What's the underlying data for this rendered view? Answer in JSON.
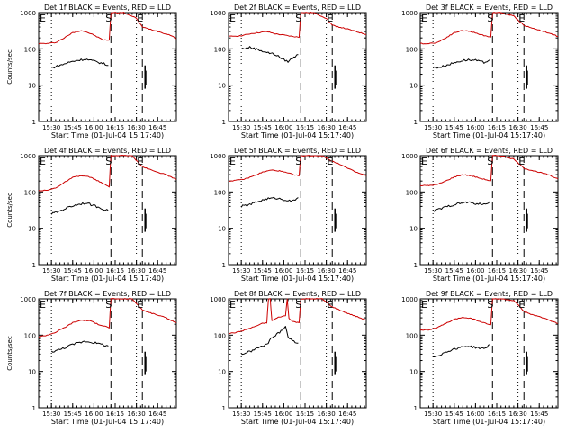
{
  "page": {
    "background": "#ffffff"
  },
  "chart_data": [
    {
      "type": "line",
      "title": "Det 1f BLACK = Events, RED = LLD",
      "xlabel": "Start Time (01-Jul-04 15:17:40)",
      "ylabel": "Counts/sec",
      "xlim": [
        15.35,
        16.97
      ],
      "ylim": [
        1,
        1000
      ],
      "log_y": true,
      "x_tick_labels": [
        "15:30",
        "15:45",
        "16:00",
        "16:15",
        "16:30",
        "16:45"
      ],
      "y_tick_labels": [
        "1",
        "10",
        "100",
        "1000"
      ],
      "markers": {
        "dotted": [
          15.5,
          16.5
        ],
        "dashed": [
          16.2,
          16.57
        ],
        "text": [
          {
            "x": 15.35,
            "label": "E"
          },
          {
            "x": 16.2,
            "label": "S"
          },
          {
            "x": 16.57,
            "label": "E"
          }
        ]
      },
      "series": [
        {
          "legend": "RED = LLD",
          "color": "#cc0000",
          "x": [
            15.35,
            15.45,
            15.55,
            15.65,
            15.75,
            15.85,
            15.9,
            16.0,
            16.1,
            16.18,
            16.2,
            16.22,
            16.27,
            16.35,
            16.5,
            16.57,
            16.6,
            16.7,
            16.8,
            16.9,
            16.97
          ],
          "y": [
            140,
            140,
            150,
            200,
            280,
            320,
            300,
            240,
            180,
            170,
            1000,
            1000,
            1000,
            1000,
            700,
            400,
            380,
            330,
            280,
            240,
            190
          ]
        },
        {
          "legend": "BLACK = Events",
          "color": "#000000",
          "x": [
            15.5,
            15.6,
            15.7,
            15.8,
            15.9,
            16.0,
            16.1,
            16.17
          ],
          "y": [
            30,
            35,
            42,
            48,
            52,
            46,
            40,
            35
          ]
        }
      ]
    },
    {
      "type": "line",
      "title": "Det 2f BLACK = Events, RED = LLD",
      "xlabel": "Start Time (01-Jul-04 15:17:40)",
      "ylabel": "",
      "xlim": [
        15.35,
        16.97
      ],
      "ylim": [
        1,
        1000
      ],
      "log_y": true,
      "x_tick_labels": [
        "15:30",
        "15:45",
        "16:00",
        "16:15",
        "16:30",
        "16:45"
      ],
      "y_tick_labels": [
        "1",
        "10",
        "100",
        "1000"
      ],
      "markers": {
        "dotted": [
          15.5,
          16.5
        ],
        "dashed": [
          16.2,
          16.57
        ],
        "text": [
          {
            "x": 15.35,
            "label": "E"
          },
          {
            "x": 16.2,
            "label": "S"
          },
          {
            "x": 16.57,
            "label": "E"
          }
        ]
      },
      "series": [
        {
          "legend": "RED = LLD",
          "color": "#cc0000",
          "x": [
            15.35,
            15.5,
            15.6,
            15.7,
            15.8,
            15.9,
            16.0,
            16.1,
            16.18,
            16.2,
            16.25,
            16.35,
            16.5,
            16.57,
            16.65,
            16.75,
            16.85,
            16.97
          ],
          "y": [
            220,
            230,
            260,
            280,
            300,
            260,
            240,
            220,
            210,
            1000,
            1000,
            1000,
            700,
            450,
            400,
            350,
            300,
            250
          ]
        },
        {
          "legend": "BLACK = Events",
          "color": "#000000",
          "x": [
            15.5,
            15.6,
            15.7,
            15.8,
            15.9,
            16.0,
            16.05,
            16.1,
            16.17
          ],
          "y": [
            100,
            110,
            95,
            80,
            70,
            50,
            45,
            55,
            70
          ]
        }
      ]
    },
    {
      "type": "line",
      "title": "Det 3f BLACK = Events, RED = LLD",
      "xlabel": "Start Time (01-Jul-04 15:17:40)",
      "ylabel": "",
      "xlim": [
        15.35,
        16.97
      ],
      "ylim": [
        1,
        1000
      ],
      "log_y": true,
      "x_tick_labels": [
        "15:30",
        "15:45",
        "16:00",
        "16:15",
        "16:30",
        "16:45"
      ],
      "y_tick_labels": [
        "1",
        "10",
        "100",
        "1000"
      ],
      "markers": {
        "dotted": [
          15.5,
          16.5
        ],
        "dashed": [
          16.2,
          16.57
        ],
        "text": [
          {
            "x": 15.35,
            "label": "E"
          },
          {
            "x": 16.2,
            "label": "S"
          },
          {
            "x": 16.57,
            "label": "E"
          }
        ]
      },
      "series": [
        {
          "legend": "RED = LLD",
          "color": "#cc0000",
          "x": [
            15.35,
            15.45,
            15.55,
            15.65,
            15.75,
            15.85,
            15.95,
            16.05,
            16.15,
            16.18,
            16.2,
            16.3,
            16.45,
            16.57,
            16.65,
            16.75,
            16.85,
            16.97
          ],
          "y": [
            140,
            140,
            150,
            200,
            280,
            320,
            300,
            250,
            220,
            210,
            1000,
            1000,
            800,
            450,
            380,
            330,
            280,
            220
          ]
        },
        {
          "legend": "BLACK = Events",
          "color": "#000000",
          "x": [
            15.5,
            15.6,
            15.7,
            15.8,
            15.9,
            16.0,
            16.1,
            16.17
          ],
          "y": [
            30,
            32,
            38,
            45,
            50,
            48,
            42,
            50
          ]
        }
      ]
    },
    {
      "type": "line",
      "title": "Det 4f BLACK = Events, RED = LLD",
      "xlabel": "Start Time (01-Jul-04 15:17:40)",
      "ylabel": "Counts/sec",
      "xlim": [
        15.35,
        16.97
      ],
      "ylim": [
        1,
        1000
      ],
      "log_y": true,
      "x_tick_labels": [
        "15:30",
        "15:45",
        "16:00",
        "16:15",
        "16:30",
        "16:45"
      ],
      "y_tick_labels": [
        "1",
        "10",
        "100",
        "1000"
      ],
      "markers": {
        "dotted": [
          15.5,
          16.5
        ],
        "dashed": [
          16.2,
          16.57
        ],
        "text": [
          {
            "x": 15.35,
            "label": "E"
          },
          {
            "x": 16.2,
            "label": "S"
          },
          {
            "x": 16.57,
            "label": "E"
          }
        ]
      },
      "series": [
        {
          "legend": "RED = LLD",
          "color": "#cc0000",
          "x": [
            15.35,
            15.45,
            15.55,
            15.65,
            15.75,
            15.85,
            15.95,
            16.05,
            16.15,
            16.18,
            16.2,
            16.3,
            16.45,
            16.57,
            16.65,
            16.75,
            16.85,
            16.97
          ],
          "y": [
            110,
            110,
            130,
            180,
            250,
            280,
            260,
            200,
            150,
            140,
            1000,
            1000,
            1000,
            500,
            420,
            350,
            300,
            220
          ]
        },
        {
          "legend": "BLACK = Events",
          "color": "#000000",
          "x": [
            15.5,
            15.6,
            15.7,
            15.8,
            15.9,
            16.0,
            16.1,
            16.17
          ],
          "y": [
            25,
            30,
            38,
            45,
            50,
            42,
            35,
            30
          ]
        }
      ]
    },
    {
      "type": "line",
      "title": "Det 5f BLACK = Events, RED = LLD",
      "xlabel": "Start Time (01-Jul-04 15:17:40)",
      "ylabel": "",
      "xlim": [
        15.35,
        16.97
      ],
      "ylim": [
        1,
        1000
      ],
      "log_y": true,
      "x_tick_labels": [
        "15:30",
        "15:45",
        "16:00",
        "16:15",
        "16:30",
        "16:45"
      ],
      "y_tick_labels": [
        "1",
        "10",
        "100",
        "1000"
      ],
      "markers": {
        "dotted": [
          15.5,
          16.5
        ],
        "dashed": [
          16.2,
          16.57
        ],
        "text": [
          {
            "x": 15.35,
            "label": "E"
          },
          {
            "x": 16.2,
            "label": "S"
          },
          {
            "x": 16.57,
            "label": "E"
          }
        ]
      },
      "series": [
        {
          "legend": "RED = LLD",
          "color": "#cc0000",
          "x": [
            15.35,
            15.45,
            15.55,
            15.65,
            15.75,
            15.85,
            15.95,
            16.05,
            16.15,
            16.18,
            16.2,
            16.3,
            16.45,
            16.57,
            16.65,
            16.75,
            16.85,
            16.97
          ],
          "y": [
            200,
            210,
            230,
            280,
            350,
            400,
            380,
            330,
            290,
            280,
            1000,
            1000,
            1000,
            700,
            600,
            450,
            350,
            280
          ]
        },
        {
          "legend": "BLACK = Events",
          "color": "#000000",
          "x": [
            15.5,
            15.6,
            15.7,
            15.8,
            15.9,
            16.0,
            16.1,
            16.17
          ],
          "y": [
            40,
            45,
            55,
            65,
            68,
            62,
            55,
            70
          ]
        }
      ]
    },
    {
      "type": "line",
      "title": "Det 6f BLACK = Events, RED = LLD",
      "xlabel": "Start Time (01-Jul-04 15:17:40)",
      "ylabel": "",
      "xlim": [
        15.35,
        16.97
      ],
      "ylim": [
        1,
        1000
      ],
      "log_y": true,
      "x_tick_labels": [
        "15:30",
        "15:45",
        "16:00",
        "16:15",
        "16:30",
        "16:45"
      ],
      "y_tick_labels": [
        "1",
        "10",
        "100",
        "1000"
      ],
      "markers": {
        "dotted": [
          15.5,
          16.5
        ],
        "dashed": [
          16.2,
          16.57
        ],
        "text": [
          {
            "x": 15.35,
            "label": "E"
          },
          {
            "x": 16.2,
            "label": "S"
          },
          {
            "x": 16.57,
            "label": "E"
          }
        ]
      },
      "series": [
        {
          "legend": "RED = LLD",
          "color": "#cc0000",
          "x": [
            15.35,
            15.45,
            15.55,
            15.65,
            15.75,
            15.85,
            15.95,
            16.05,
            16.15,
            16.18,
            16.2,
            16.3,
            16.45,
            16.57,
            16.65,
            16.75,
            16.85,
            16.97
          ],
          "y": [
            150,
            150,
            160,
            200,
            260,
            300,
            280,
            240,
            210,
            200,
            1000,
            1000,
            800,
            450,
            400,
            350,
            300,
            230
          ]
        },
        {
          "legend": "BLACK = Events",
          "color": "#000000",
          "x": [
            15.5,
            15.6,
            15.7,
            15.8,
            15.9,
            16.0,
            16.1,
            16.17
          ],
          "y": [
            30,
            35,
            42,
            48,
            52,
            48,
            45,
            55
          ]
        }
      ]
    },
    {
      "type": "line",
      "title": "Det 7f BLACK = Events, RED = LLD",
      "xlabel": "Start Time (01-Jul-04 15:17:40)",
      "ylabel": "Counts/sec",
      "xlim": [
        15.35,
        16.97
      ],
      "ylim": [
        1,
        1000
      ],
      "log_y": true,
      "x_tick_labels": [
        "15:30",
        "15:45",
        "16:00",
        "16:15",
        "16:30",
        "16:45"
      ],
      "y_tick_labels": [
        "1",
        "10",
        "100",
        "1000"
      ],
      "markers": {
        "dotted": [
          15.5,
          16.5
        ],
        "dashed": [
          16.2,
          16.57
        ],
        "text": [
          {
            "x": 15.35,
            "label": "E"
          },
          {
            "x": 16.2,
            "label": "S"
          },
          {
            "x": 16.57,
            "label": "E"
          }
        ]
      },
      "series": [
        {
          "legend": "RED = LLD",
          "color": "#cc0000",
          "x": [
            15.35,
            15.45,
            15.55,
            15.65,
            15.75,
            15.85,
            15.95,
            16.05,
            16.15,
            16.18,
            16.2,
            16.3,
            16.45,
            16.57,
            16.65,
            16.75,
            16.85,
            16.97
          ],
          "y": [
            90,
            100,
            120,
            160,
            220,
            260,
            250,
            200,
            170,
            160,
            1000,
            1000,
            1000,
            500,
            420,
            360,
            300,
            220
          ]
        },
        {
          "legend": "BLACK = Events",
          "color": "#000000",
          "x": [
            15.5,
            15.6,
            15.7,
            15.8,
            15.9,
            16.0,
            16.1,
            16.17
          ],
          "y": [
            35,
            40,
            50,
            60,
            68,
            62,
            55,
            50
          ]
        }
      ]
    },
    {
      "type": "line",
      "title": "Det 8f BLACK = Events, RED = LLD",
      "xlabel": "Start Time (01-Jul-04 15:17:40)",
      "ylabel": "",
      "xlim": [
        15.35,
        16.97
      ],
      "ylim": [
        1,
        1000
      ],
      "log_y": true,
      "x_tick_labels": [
        "15:30",
        "15:45",
        "16:00",
        "16:15",
        "16:30",
        "16:45"
      ],
      "y_tick_labels": [
        "1",
        "10",
        "100",
        "1000"
      ],
      "markers": {
        "dotted": [
          15.5,
          16.5
        ],
        "dashed": [
          16.2,
          16.57
        ],
        "text": [
          {
            "x": 15.35,
            "label": "E"
          },
          {
            "x": 16.2,
            "label": "S"
          },
          {
            "x": 16.57,
            "label": "E"
          }
        ]
      },
      "series": [
        {
          "legend": "RED = LLD",
          "color": "#cc0000",
          "x": [
            15.35,
            15.45,
            15.55,
            15.65,
            15.75,
            15.8,
            15.82,
            15.84,
            15.86,
            15.95,
            16.02,
            16.04,
            16.06,
            16.1,
            16.18,
            16.2,
            16.3,
            16.45,
            16.57,
            16.65,
            16.75,
            16.85,
            16.97
          ],
          "y": [
            110,
            120,
            140,
            170,
            210,
            220,
            1000,
            1000,
            250,
            320,
            340,
            1000,
            300,
            240,
            220,
            1000,
            1000,
            1000,
            600,
            500,
            400,
            330,
            260
          ]
        },
        {
          "legend": "BLACK = Events",
          "color": "#000000",
          "x": [
            15.5,
            15.6,
            15.7,
            15.8,
            15.85,
            15.95,
            16.02,
            16.05,
            16.1,
            16.17
          ],
          "y": [
            30,
            35,
            45,
            55,
            80,
            120,
            180,
            90,
            70,
            60
          ]
        }
      ]
    },
    {
      "type": "line",
      "title": "Det 9f BLACK = Events, RED = LLD",
      "xlabel": "Start Time (01-Jul-04 15:17:40)",
      "ylabel": "",
      "xlim": [
        15.35,
        16.97
      ],
      "ylim": [
        1,
        1000
      ],
      "log_y": true,
      "x_tick_labels": [
        "15:30",
        "15:45",
        "16:00",
        "16:15",
        "16:30",
        "16:45"
      ],
      "y_tick_labels": [
        "1",
        "10",
        "100",
        "1000"
      ],
      "markers": {
        "dotted": [
          15.5,
          16.5
        ],
        "dashed": [
          16.2,
          16.57
        ],
        "text": [
          {
            "x": 15.35,
            "label": "E"
          },
          {
            "x": 16.2,
            "label": "S"
          },
          {
            "x": 16.57,
            "label": "E"
          }
        ]
      },
      "series": [
        {
          "legend": "RED = LLD",
          "color": "#cc0000",
          "x": [
            15.35,
            15.45,
            15.55,
            15.65,
            15.75,
            15.85,
            15.95,
            16.05,
            16.15,
            16.18,
            16.2,
            16.3,
            16.45,
            16.57,
            16.65,
            16.75,
            16.85,
            16.97
          ],
          "y": [
            140,
            140,
            160,
            210,
            270,
            310,
            290,
            240,
            200,
            190,
            1000,
            1000,
            900,
            450,
            380,
            320,
            270,
            210
          ]
        },
        {
          "legend": "BLACK = Events",
          "color": "#000000",
          "x": [
            15.5,
            15.6,
            15.7,
            15.8,
            15.9,
            16.0,
            16.1,
            16.17
          ],
          "y": [
            25,
            30,
            38,
            45,
            50,
            46,
            42,
            55
          ]
        }
      ]
    }
  ]
}
